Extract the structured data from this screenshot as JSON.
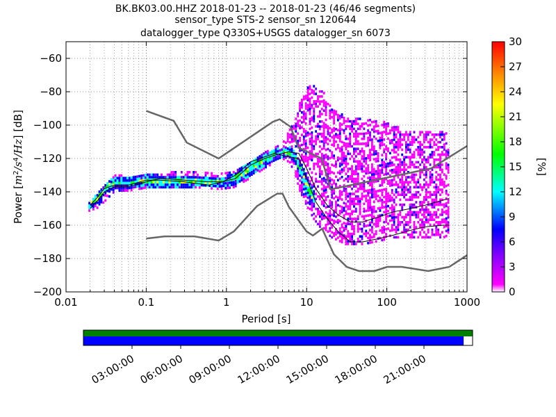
{
  "title_lines": [
    "BK.BK03.00.HHZ   2018-01-23 -- 2018-01-23  (46/46 segments)",
    "sensor_type STS-2 sensor_sn 120644",
    "datalogger_type Q330S+USGS datalogger_sn 6073"
  ],
  "chart_data": {
    "type": "heatmap",
    "xlabel": "Period [s]",
    "ylabel_parts": {
      "prefix": "Power [",
      "m": "m",
      "sup2": "2",
      "s": "/s",
      "sup4": "4",
      "hz": "/Hz",
      "suffix": "] [dB]"
    },
    "xscale": "log",
    "xlim": [
      0.01,
      1000
    ],
    "ylim": [
      -200,
      -50
    ],
    "xticks": [
      0.01,
      0.1,
      1,
      10,
      100,
      1000
    ],
    "xtick_labels": [
      "0.01",
      "0.1",
      "1",
      "10",
      "100",
      "1000"
    ],
    "yticks": [
      -200,
      -180,
      -160,
      -140,
      -120,
      -100,
      -80,
      -60
    ],
    "ytick_labels": [
      "−200",
      "−180",
      "−160",
      "−140",
      "−120",
      "−100",
      "−80",
      "−60"
    ],
    "grid": true,
    "colorbar": {
      "label": "[%]",
      "min": 0,
      "max": 30,
      "ticks": [
        0,
        3,
        6,
        9,
        12,
        15,
        18,
        21,
        24,
        27,
        30
      ],
      "tick_labels": [
        "0",
        "3",
        "6",
        "9",
        "12",
        "15",
        "18",
        "21",
        "24",
        "27",
        "30"
      ],
      "colors": [
        "#ffffff",
        "#ff00ff",
        "#8000ff",
        "#0000ff",
        "#00ffff",
        "#00ff00",
        "#ffff00",
        "#ff8000",
        "#ff0000"
      ]
    },
    "noise_models": [
      {
        "name": "NHNM",
        "color": "#666666",
        "period": [
          0.1,
          0.22,
          0.32,
          0.8,
          3.8,
          4.6,
          6.3,
          7.9,
          15.4,
          20,
          354.8,
          1000
        ],
        "power": [
          -91.5,
          -97.4,
          -110.5,
          -120,
          -98,
          -96.5,
          -101,
          -113.5,
          -120,
          -138.5,
          -126,
          -112.5
        ]
      },
      {
        "name": "NLNM",
        "color": "#666666",
        "period": [
          0.1,
          0.17,
          0.4,
          0.8,
          1.24,
          2.4,
          4.3,
          5,
          6,
          10,
          12,
          15.6,
          21.9,
          31.6,
          45,
          70,
          101,
          154,
          328,
          600,
          1000
        ],
        "power": [
          -168,
          -166.7,
          -166.7,
          -169.2,
          -163.7,
          -148.6,
          -141.1,
          -141.1,
          -149,
          -163.8,
          -166.2,
          -162.1,
          -177.5,
          -185,
          -187.5,
          -187.5,
          -185,
          -185,
          -187.5,
          -185,
          -178
        ]
      },
      {
        "name": "mean",
        "color": "#000000",
        "period": [
          0.02,
          0.025,
          0.03,
          0.04,
          0.06,
          0.1,
          0.15,
          0.3,
          0.6,
          0.9,
          1.3,
          2,
          3,
          4,
          6,
          8,
          10,
          13,
          18,
          25,
          35,
          50,
          80,
          120,
          200,
          300,
          500,
          600
        ],
        "power": [
          -150,
          -145,
          -140,
          -137,
          -137,
          -134,
          -132,
          -133,
          -134,
          -134,
          -132,
          -124,
          -120,
          -118,
          -116,
          -117,
          -126,
          -138,
          -148,
          -154,
          -158,
          -158,
          -155,
          -152,
          -150,
          -148,
          -145,
          -144
        ]
      },
      {
        "name": "mode",
        "color": "#000000",
        "period": [
          0.02,
          0.025,
          0.03,
          0.04,
          0.06,
          0.1,
          0.15,
          0.3,
          0.6,
          0.9,
          1.3,
          2,
          3,
          4,
          6,
          8,
          10,
          13,
          18,
          25,
          35,
          50,
          80,
          120,
          200,
          300,
          500,
          600
        ],
        "power": [
          -148,
          -143,
          -138,
          -136,
          -136,
          -133,
          -133,
          -134,
          -136,
          -134,
          -130,
          -122,
          -119,
          -117,
          -119,
          -120,
          -132,
          -146,
          -156,
          -164,
          -170,
          -170,
          -168,
          -166,
          -163,
          -161,
          -160,
          -160
        ]
      }
    ],
    "envelope_approx": {
      "period": [
        0.019,
        0.025,
        0.03,
        0.04,
        0.06,
        0.1,
        0.2,
        0.4,
        0.8,
        1.2,
        2,
        3,
        4,
        5,
        6,
        7,
        8,
        10,
        12,
        15,
        20,
        30,
        50,
        80,
        120,
        200,
        300,
        500,
        600
      ],
      "upper": [
        -147,
        -141,
        -136,
        -131,
        -131,
        -130,
        -129,
        -128,
        -130,
        -128,
        -122,
        -117,
        -114,
        -111,
        -103,
        -97,
        -87,
        -78,
        -76,
        -78,
        -90,
        -96,
        -97,
        -98,
        -101,
        -104,
        -105,
        -105,
        -105
      ],
      "lower": [
        -152,
        -150,
        -146,
        -140,
        -140,
        -138,
        -138,
        -138,
        -139,
        -138,
        -132,
        -126,
        -123,
        -121,
        -123,
        -130,
        -140,
        -150,
        -157,
        -163,
        -168,
        -172,
        -172,
        -170,
        -168,
        -168,
        -168,
        -168,
        -166
      ],
      "core_upper": [
        -146,
        -140,
        -135,
        -132,
        -132,
        -130,
        -131,
        -131,
        -132,
        -130,
        -121,
        -117,
        -115,
        -114,
        -114,
        -116,
        -122,
        -132,
        -140
      ],
      "core_lower": [
        -151,
        -148,
        -142,
        -139,
        -139,
        -138,
        -138,
        -138,
        -138,
        -137,
        -131,
        -125,
        -122,
        -120,
        -121,
        -124,
        -132,
        -145,
        -150
      ],
      "core_count": 19
    }
  },
  "timeline": {
    "tick_labels": [
      "03:00:00",
      "06:00:00",
      "09:00:00",
      "12:00:00",
      "15:00:00",
      "18:00:00",
      "21:00:00"
    ],
    "coverage_fraction": 0.977,
    "top_color": "#008000",
    "bottom_color": "#0000ff"
  }
}
